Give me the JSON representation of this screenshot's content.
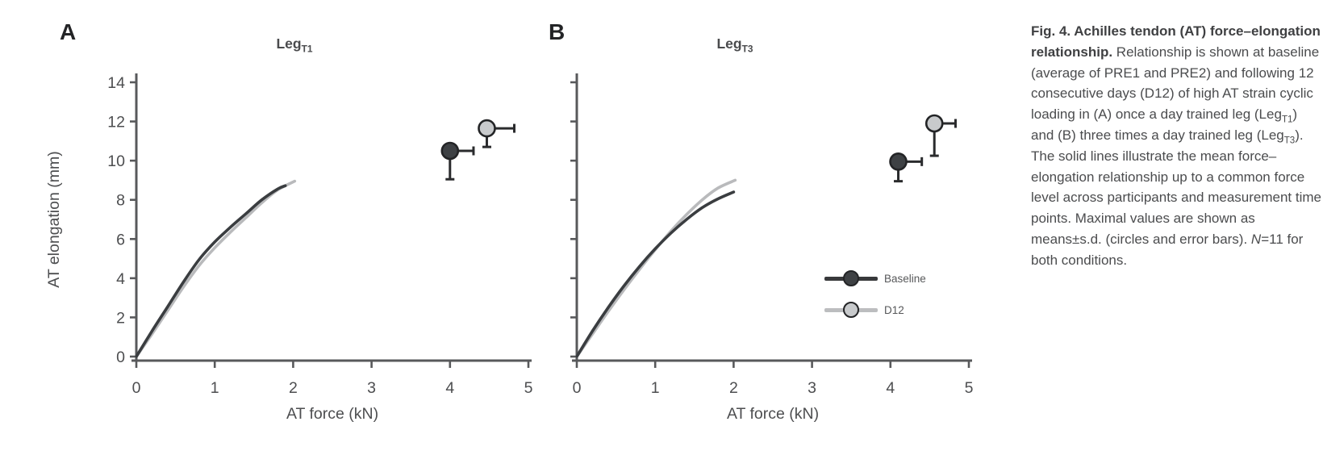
{
  "panels": [
    {
      "label": "A",
      "title_main": "Leg",
      "title_sub": "T1"
    },
    {
      "label": "B",
      "title_main": "Leg",
      "title_sub": "T3"
    }
  ],
  "axes": {
    "xlabel": "AT force (kN)",
    "ylabel": "AT elongation (mm)"
  },
  "legend": {
    "entries": [
      {
        "label": "Baseline",
        "line_color": "#38393b",
        "marker_fill": "#3e4144"
      },
      {
        "label": "D12",
        "line_color": "#bcbdbf",
        "marker_fill": "#c8cacc"
      }
    ]
  },
  "colors": {
    "axis": "#58595b",
    "tick_text": "#4d4e50",
    "baseline_series": "#3a3d40",
    "d12_series": "#b9babc",
    "error_bar": "#2a2b2d",
    "background": "#ffffff"
  },
  "chart_data": [
    {
      "type": "line",
      "panel": "A",
      "title": "LegT1",
      "xlabel": "AT force (kN)",
      "ylabel": "AT elongation (mm)",
      "xlim": [
        0,
        5
      ],
      "ylim": [
        0,
        14
      ],
      "x_ticks": [
        0,
        1,
        2,
        3,
        4,
        5
      ],
      "y_ticks": [
        0,
        2,
        4,
        6,
        8,
        10,
        12,
        14
      ],
      "show_y_tick_labels": true,
      "grid": false,
      "series": [
        {
          "name": "Baseline",
          "color": "#3a3d40",
          "points": [
            [
              0,
              0
            ],
            [
              0.2,
              1.3
            ],
            [
              0.4,
              2.55
            ],
            [
              0.6,
              3.8
            ],
            [
              0.8,
              4.95
            ],
            [
              1.0,
              5.85
            ],
            [
              1.2,
              6.6
            ],
            [
              1.4,
              7.3
            ],
            [
              1.6,
              8.0
            ],
            [
              1.8,
              8.55
            ],
            [
              1.9,
              8.72
            ]
          ]
        },
        {
          "name": "D12",
          "color": "#b9babc",
          "points": [
            [
              0,
              0
            ],
            [
              0.2,
              1.15
            ],
            [
              0.4,
              2.35
            ],
            [
              0.6,
              3.55
            ],
            [
              0.8,
              4.65
            ],
            [
              1.0,
              5.55
            ],
            [
              1.2,
              6.35
            ],
            [
              1.4,
              7.1
            ],
            [
              1.6,
              7.85
            ],
            [
              1.8,
              8.5
            ],
            [
              2.02,
              8.95
            ]
          ]
        }
      ],
      "max_points": [
        {
          "name": "Baseline",
          "force_kN": 4.0,
          "elongation_mm": 10.5,
          "sd_force": 0.3,
          "sd_elongation": 1.45,
          "fill": "#3e4144"
        },
        {
          "name": "D12",
          "force_kN": 4.47,
          "elongation_mm": 11.65,
          "sd_force": 0.35,
          "sd_elongation": 0.95,
          "fill": "#c8cacc"
        }
      ]
    },
    {
      "type": "line",
      "panel": "B",
      "title": "LegT3",
      "xlabel": "AT force (kN)",
      "ylabel": "",
      "xlim": [
        0,
        5
      ],
      "ylim": [
        0,
        14
      ],
      "x_ticks": [
        0,
        1,
        2,
        3,
        4,
        5
      ],
      "y_ticks": [
        0,
        2,
        4,
        6,
        8,
        10,
        12,
        14
      ],
      "show_y_tick_labels": false,
      "grid": false,
      "series": [
        {
          "name": "Baseline",
          "color": "#3a3d40",
          "points": [
            [
              0,
              0
            ],
            [
              0.2,
              1.3
            ],
            [
              0.4,
              2.5
            ],
            [
              0.6,
              3.6
            ],
            [
              0.8,
              4.6
            ],
            [
              1.0,
              5.5
            ],
            [
              1.2,
              6.3
            ],
            [
              1.4,
              7.0
            ],
            [
              1.6,
              7.6
            ],
            [
              1.8,
              8.05
            ],
            [
              2.0,
              8.4
            ]
          ]
        },
        {
          "name": "D12",
          "color": "#b9babc",
          "points": [
            [
              0,
              0
            ],
            [
              0.2,
              1.15
            ],
            [
              0.4,
              2.3
            ],
            [
              0.6,
              3.4
            ],
            [
              0.8,
              4.45
            ],
            [
              1.0,
              5.45
            ],
            [
              1.2,
              6.4
            ],
            [
              1.4,
              7.25
            ],
            [
              1.6,
              8.0
            ],
            [
              1.8,
              8.6
            ],
            [
              2.02,
              9.0
            ]
          ]
        }
      ],
      "max_points": [
        {
          "name": "Baseline",
          "force_kN": 4.1,
          "elongation_mm": 9.95,
          "sd_force": 0.3,
          "sd_elongation": 1.0,
          "fill": "#3e4144"
        },
        {
          "name": "D12",
          "force_kN": 4.56,
          "elongation_mm": 11.9,
          "sd_force": 0.27,
          "sd_elongation": 1.65,
          "fill": "#c8cacc"
        }
      ]
    }
  ],
  "caption": {
    "bold_lead": "Fig. 4. Achilles tendon (AT) force–elongation relationship.",
    "body_1": " Relationship is shown at baseline (average of PRE1 and PRE2) and following 12 consecutive days (D12) of high AT strain cyclic loading in (A) once a day trained leg (Leg",
    "sub_1": "T1",
    "body_2": ") and (B) three times a day trained leg (Leg",
    "sub_2": "T3",
    "body_3": "). The solid lines illustrate the mean force–elongation relationship up to a common force level across participants and measurement time points. Maximal values are shown as means±s.d. (circles and error bars). ",
    "n_italic": "N",
    "body_4": "=11 for both conditions."
  }
}
